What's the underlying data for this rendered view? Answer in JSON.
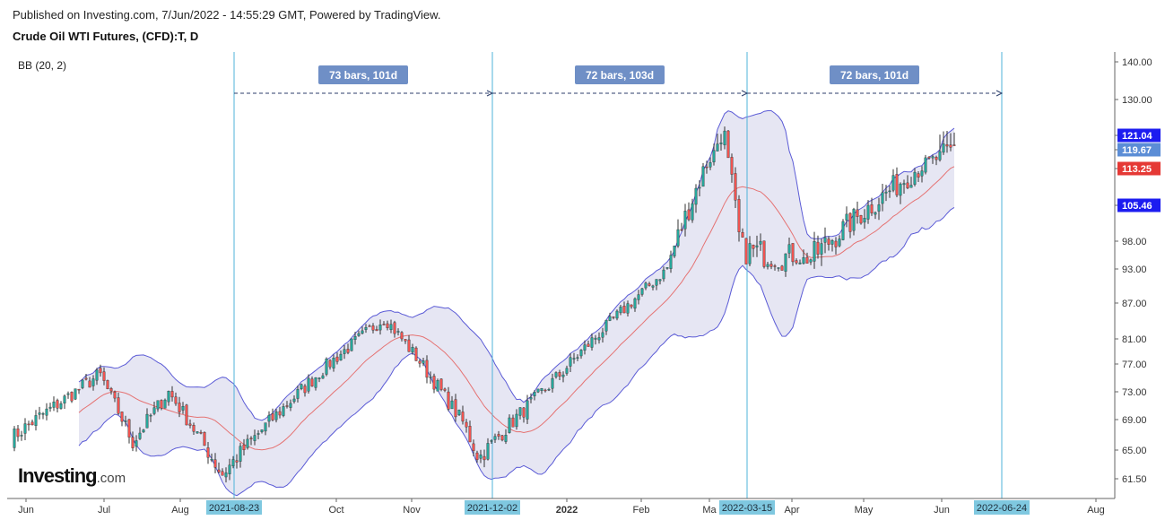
{
  "header": {
    "published": "Published on Investing.com, 7/Jun/2022 - 14:55:29 GMT, Powered by TradingView.",
    "symbol": "Crude Oil WTI Futures, (CFD):T, D"
  },
  "indicator": {
    "label": "BB (20, 2)"
  },
  "logo": {
    "main": "Investing",
    "suffix": ".com"
  },
  "chart_data": {
    "type": "candlestick",
    "y_ticks": [
      "140.00",
      "130.00",
      "121.04",
      "119.67",
      "113.25",
      "105.46",
      "98.00",
      "93.00",
      "87.00",
      "81.00",
      "77.00",
      "73.00",
      "69.00",
      "65.00",
      "61.50"
    ],
    "price_badges": [
      {
        "value": "121.04",
        "color": "#1c1cf0"
      },
      {
        "value": "119.67",
        "color": "#5b8dd6"
      },
      {
        "value": "113.25",
        "color": "#e53935"
      },
      {
        "value": "105.46",
        "color": "#1c1cf0"
      }
    ],
    "x_ticks": [
      "Jun",
      "Jul",
      "Aug",
      "Oct",
      "Nov",
      "2022",
      "Feb",
      "Ma",
      "Apr",
      "May",
      "Jun",
      "Aug"
    ],
    "date_markers": [
      "2021-08-23",
      "2021-12-02",
      "2022-03-15",
      "2022-06-24"
    ],
    "ranges": [
      {
        "label": "73 bars, 101d",
        "from": "2021-08-23",
        "to": "2021-12-02"
      },
      {
        "label": "72 bars, 103d",
        "from": "2021-12-02",
        "to": "2022-03-15"
      },
      {
        "label": "72 bars, 101d",
        "from": "2022-03-15",
        "to": "2022-06-24"
      }
    ],
    "colors": {
      "up": "#26a69a",
      "down": "#ef5350",
      "band_fill": "#e6e6f3",
      "band_line": "#5b5bd6",
      "basis": "#e57373",
      "marker_line": "#4fb3d9",
      "range_badge": "#6f8fc6"
    },
    "approx_closes": [
      {
        "date": "2021-06-01",
        "close": 66.5
      },
      {
        "date": "2021-07-06",
        "close": 75.5
      },
      {
        "date": "2021-07-19",
        "close": 66.0
      },
      {
        "date": "2021-08-02",
        "close": 73.0
      },
      {
        "date": "2021-08-23",
        "close": 62.0
      },
      {
        "date": "2021-10-01",
        "close": 76.0
      },
      {
        "date": "2021-10-26",
        "close": 84.5
      },
      {
        "date": "2021-11-26",
        "close": 68.5
      },
      {
        "date": "2021-12-02",
        "close": 64.0
      },
      {
        "date": "2022-01-03",
        "close": 75.5
      },
      {
        "date": "2022-02-14",
        "close": 93.0
      },
      {
        "date": "2022-03-08",
        "close": 123.5
      },
      {
        "date": "2022-03-15",
        "close": 96.5
      },
      {
        "date": "2022-04-11",
        "close": 94.5
      },
      {
        "date": "2022-05-02",
        "close": 104.0
      },
      {
        "date": "2022-06-07",
        "close": 119.67
      }
    ]
  }
}
